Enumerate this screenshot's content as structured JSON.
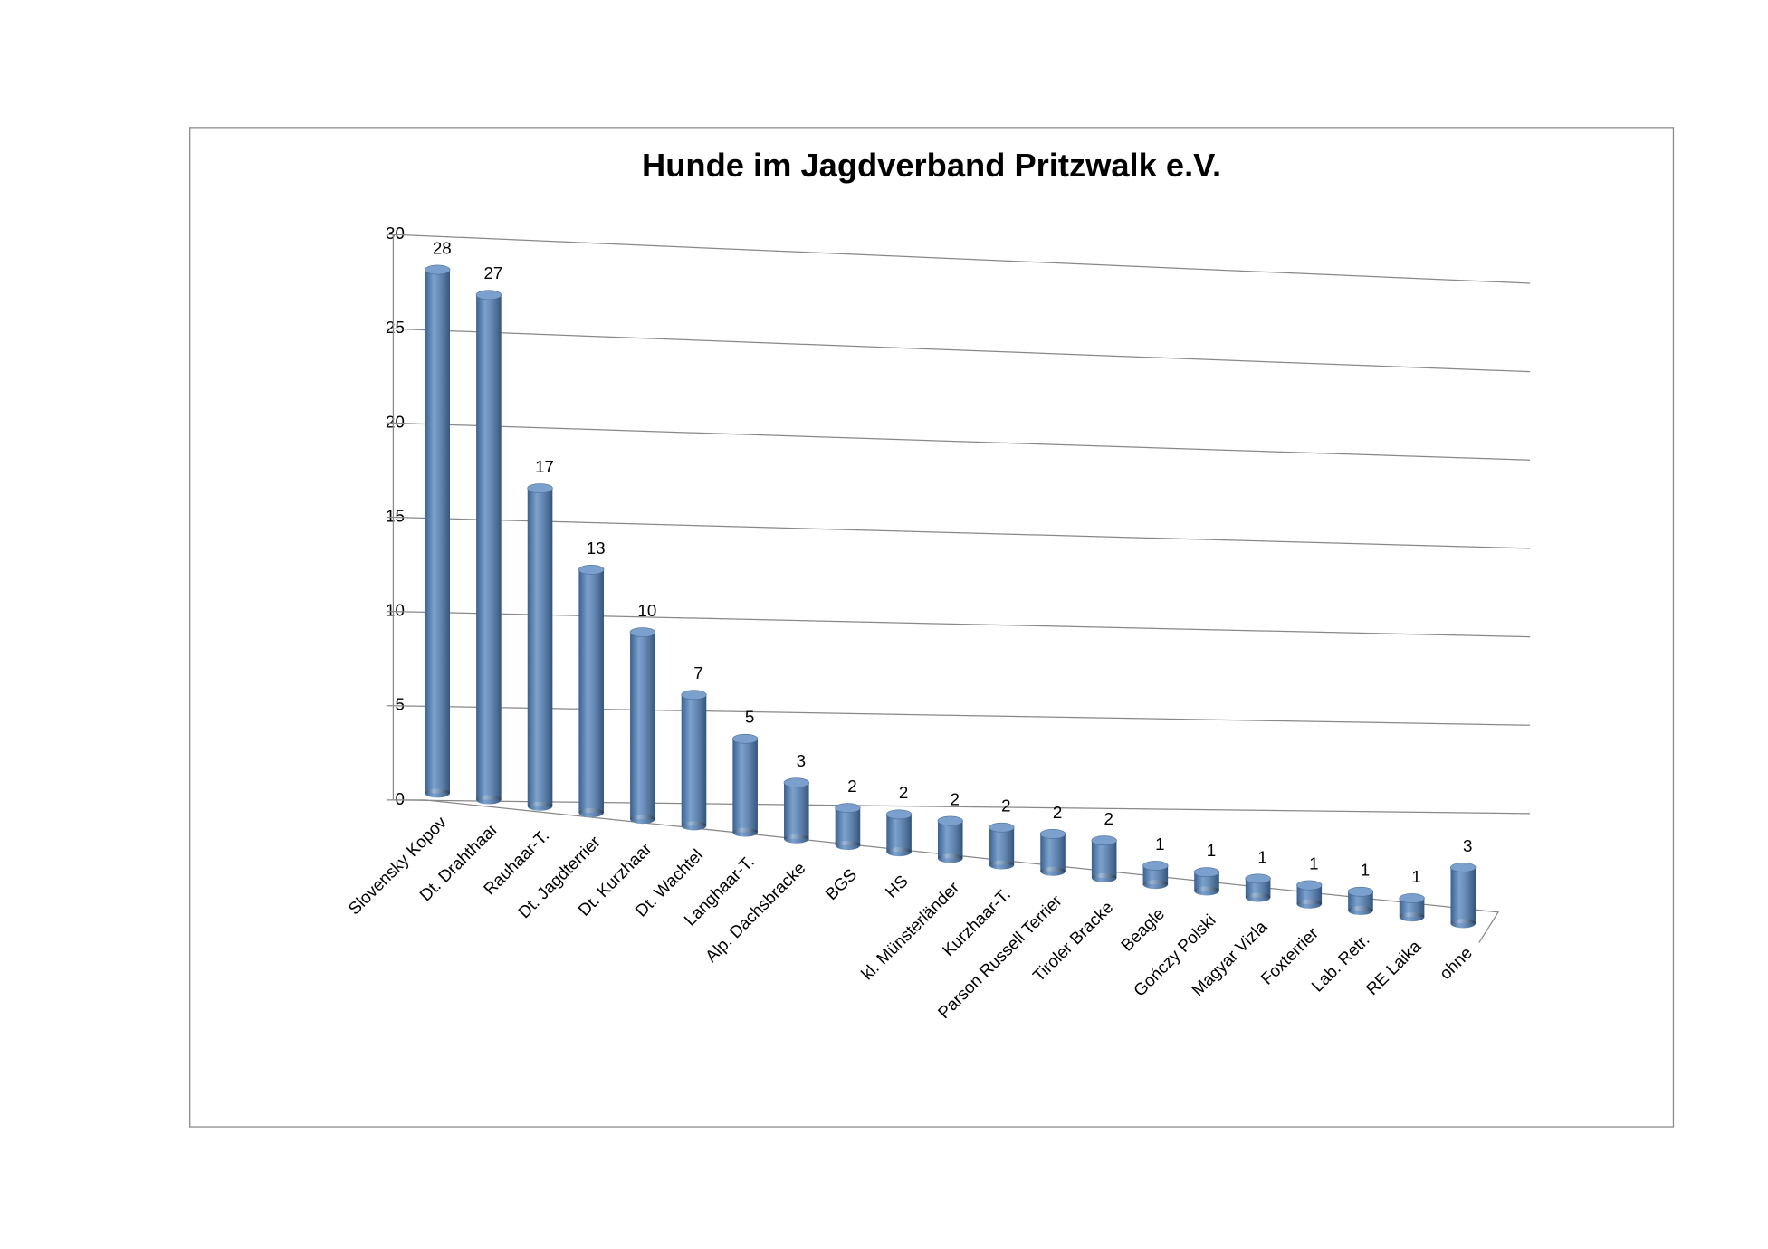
{
  "chart_data": {
    "type": "bar",
    "title": "Hunde im Jagdverband Pritzwalk e.V.",
    "categories": [
      "Slovensky Kopov",
      "Dt. Drahthaar",
      "Rauhaar-T.",
      "Dt. Jagdterrier",
      "Dt. Kurzhaar",
      "Dt. Wachtel",
      "Langhaar-T.",
      "Alp. Dachsbracke",
      "BGS",
      "HS",
      "kl. Münsterländer",
      "Kurzhaar-T.",
      "Parson Russell Terrier",
      "Tiroler Bracke",
      "Beagle",
      "Gończy Polski",
      "Magyar Vizla",
      "Foxterrier",
      "Lab. Retr.",
      "RE Laika",
      "ohne"
    ],
    "values": [
      28,
      27,
      17,
      13,
      10,
      7,
      5,
      3,
      2,
      2,
      2,
      2,
      2,
      2,
      1,
      1,
      1,
      1,
      1,
      1,
      3
    ],
    "color": "#4f81bd",
    "ylim": [
      0,
      30
    ],
    "yticks": [
      0,
      5,
      10,
      15,
      20,
      25,
      30
    ],
    "grid": true
  }
}
